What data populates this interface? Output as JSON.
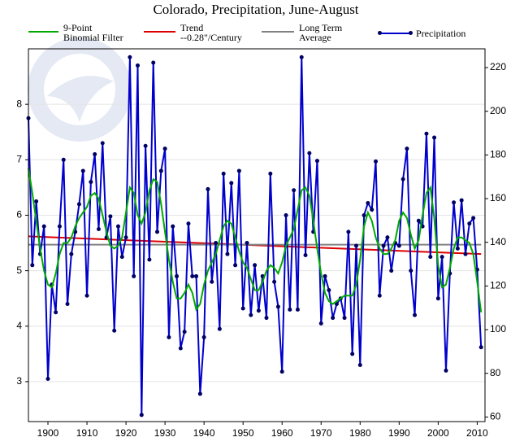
{
  "chart_data": {
    "type": "line",
    "title": "Colorado, Precipitation, June-August",
    "x": [
      1895,
      1896,
      1897,
      1898,
      1899,
      1900,
      1901,
      1902,
      1903,
      1904,
      1905,
      1906,
      1907,
      1908,
      1909,
      1910,
      1911,
      1912,
      1913,
      1914,
      1915,
      1916,
      1917,
      1918,
      1919,
      1920,
      1921,
      1922,
      1923,
      1924,
      1925,
      1926,
      1927,
      1928,
      1929,
      1930,
      1931,
      1932,
      1933,
      1934,
      1935,
      1936,
      1937,
      1938,
      1939,
      1940,
      1941,
      1942,
      1943,
      1944,
      1945,
      1946,
      1947,
      1948,
      1949,
      1950,
      1951,
      1952,
      1953,
      1954,
      1955,
      1956,
      1957,
      1958,
      1959,
      1960,
      1961,
      1962,
      1963,
      1964,
      1965,
      1966,
      1967,
      1968,
      1969,
      1970,
      1971,
      1972,
      1973,
      1974,
      1975,
      1976,
      1977,
      1978,
      1979,
      1980,
      1981,
      1982,
      1983,
      1984,
      1985,
      1986,
      1987,
      1988,
      1989,
      1990,
      1991,
      1992,
      1993,
      1994,
      1995,
      1996,
      1997,
      1998,
      1999,
      2000,
      2001,
      2002,
      2003,
      2004,
      2005,
      2006,
      2007,
      2008,
      2009,
      2010,
      2011
    ],
    "series": [
      {
        "name": "Precipitation",
        "color": "#0000cc",
        "marker_color": "#000066",
        "markers": true,
        "values": [
          7.75,
          5.1,
          6.25,
          5.3,
          5.8,
          3.05,
          4.75,
          4.25,
          5.8,
          7.0,
          4.4,
          5.3,
          5.7,
          6.2,
          6.8,
          4.55,
          6.6,
          7.1,
          5.75,
          7.3,
          5.6,
          5.98,
          3.92,
          5.8,
          5.25,
          5.6,
          8.85,
          4.9,
          8.7,
          2.4,
          7.25,
          5.2,
          8.75,
          5.7,
          6.8,
          7.2,
          3.8,
          5.8,
          4.9,
          3.6,
          3.9,
          5.85,
          4.9,
          4.9,
          2.78,
          3.8,
          6.47,
          4.8,
          5.5,
          3.95,
          6.75,
          5.3,
          6.58,
          5.1,
          6.8,
          4.32,
          5.5,
          4.2,
          5.1,
          4.28,
          4.9,
          4.15,
          6.75,
          4.8,
          4.35,
          3.18,
          6.0,
          4.3,
          6.45,
          4.3,
          8.85,
          5.28,
          7.12,
          5.7,
          6.98,
          4.05,
          4.9,
          4.65,
          4.15,
          4.4,
          4.5,
          4.15,
          5.7,
          3.5,
          5.45,
          3.3,
          6.0,
          6.22,
          6.1,
          6.97,
          4.55,
          5.45,
          5.6,
          5.0,
          5.5,
          5.45,
          6.65,
          7.2,
          5.0,
          4.2,
          5.9,
          5.8,
          7.47,
          5.25,
          7.4,
          4.5,
          5.25,
          3.2,
          4.95,
          6.23,
          5.4,
          6.27,
          5.3,
          5.85,
          5.95,
          5.02,
          3.62
        ]
      },
      {
        "name": "9-Point\nBinomial Filter",
        "color": "#00aa00",
        "markers": false,
        "values": [
          6.85,
          6.4,
          5.9,
          5.4,
          5.0,
          4.75,
          4.7,
          4.95,
          5.3,
          5.5,
          5.5,
          5.6,
          5.8,
          5.95,
          6.05,
          6.15,
          6.35,
          6.4,
          6.3,
          6.0,
          5.7,
          5.45,
          5.4,
          5.45,
          5.6,
          6.05,
          6.5,
          6.4,
          6.0,
          5.85,
          6.05,
          6.45,
          6.65,
          6.6,
          6.2,
          5.7,
          5.2,
          4.8,
          4.5,
          4.5,
          4.6,
          4.75,
          4.6,
          4.3,
          4.4,
          4.75,
          5.0,
          5.15,
          5.3,
          5.55,
          5.8,
          5.9,
          5.85,
          5.6,
          5.35,
          5.15,
          5.05,
          4.85,
          4.65,
          4.65,
          4.8,
          5.0,
          5.1,
          5.05,
          4.95,
          5.15,
          5.45,
          5.6,
          5.75,
          6.1,
          6.45,
          6.5,
          6.35,
          5.9,
          5.4,
          4.95,
          4.6,
          4.45,
          4.4,
          4.45,
          4.5,
          4.55,
          4.55,
          4.55,
          4.75,
          5.2,
          5.8,
          6.05,
          5.9,
          5.6,
          5.4,
          5.3,
          5.3,
          5.4,
          5.55,
          5.9,
          6.05,
          5.95,
          5.65,
          5.4,
          5.55,
          6.0,
          6.4,
          6.5,
          5.95,
          5.1,
          4.7,
          4.75,
          5.05,
          5.4,
          5.6,
          5.6,
          5.55,
          5.5,
          5.3,
          4.8,
          4.25
        ]
      },
      {
        "name": "Trend\n--0.28\"/Century",
        "color": "#dd0000",
        "markers": false,
        "x": [
          1895,
          2011
        ],
        "values": [
          5.62,
          5.3
        ]
      },
      {
        "name": "Long Term\nAverage",
        "color": "#808080",
        "markers": false,
        "x": [
          1895,
          2011
        ],
        "values": [
          5.47,
          5.47
        ]
      }
    ],
    "xlim": [
      1895,
      2012
    ],
    "xticks": [
      1900,
      1910,
      1920,
      1930,
      1940,
      1950,
      1960,
      1970,
      1980,
      1990,
      2000,
      2010
    ],
    "ylim": [
      2.28,
      9.0
    ],
    "yticks": [
      3,
      4,
      5,
      6,
      7,
      8
    ],
    "y2lim": [
      57.9,
      228.6
    ],
    "y2ticks": [
      60,
      80,
      100,
      120,
      140,
      160,
      180,
      200,
      220
    ],
    "grid": true
  }
}
